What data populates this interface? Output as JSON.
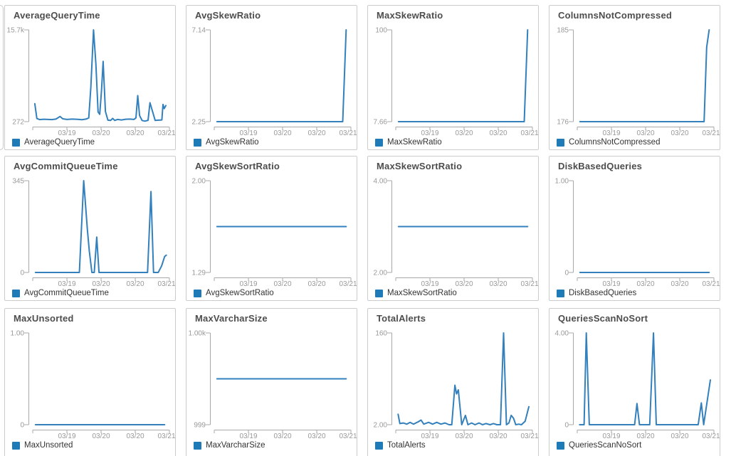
{
  "page": {
    "background": "#ffffff"
  },
  "colors": {
    "line": "#3380bc",
    "legend_swatch": "#1f7bb8",
    "axis": "#a8a8a8",
    "tick_text": "#999999",
    "title_text": "#4d4d4d",
    "legend_text": "#333333",
    "panel_border": "#cccccc"
  },
  "chart_data": [
    {
      "type": "line",
      "title": "AverageQueryTime",
      "legend": "AverageQueryTime",
      "ymin": 272,
      "ymax": 15700,
      "ymax_label": "15.7k",
      "ymin_label": "272",
      "x_tick_labels": [
        "03/19",
        "03/20",
        "03/20",
        "03/21"
      ],
      "grid": false,
      "legend_position": "bottom-left",
      "points": [
        [
          0.015,
          3300
        ],
        [
          0.03,
          800
        ],
        [
          0.05,
          620
        ],
        [
          0.08,
          680
        ],
        [
          0.11,
          640
        ],
        [
          0.14,
          620
        ],
        [
          0.17,
          700
        ],
        [
          0.2,
          1150
        ],
        [
          0.22,
          750
        ],
        [
          0.25,
          640
        ],
        [
          0.29,
          700
        ],
        [
          0.33,
          660
        ],
        [
          0.36,
          600
        ],
        [
          0.39,
          700
        ],
        [
          0.41,
          900
        ],
        [
          0.425,
          6000
        ],
        [
          0.445,
          15700
        ],
        [
          0.462,
          10000
        ],
        [
          0.478,
          1900
        ],
        [
          0.49,
          1500
        ],
        [
          0.503,
          5500
        ],
        [
          0.515,
          10400
        ],
        [
          0.532,
          2000
        ],
        [
          0.55,
          520
        ],
        [
          0.57,
          480
        ],
        [
          0.585,
          820
        ],
        [
          0.6,
          480
        ],
        [
          0.62,
          640
        ],
        [
          0.65,
          560
        ],
        [
          0.68,
          680
        ],
        [
          0.71,
          700
        ],
        [
          0.74,
          640
        ],
        [
          0.755,
          900
        ],
        [
          0.768,
          4650
        ],
        [
          0.782,
          1300
        ],
        [
          0.8,
          480
        ],
        [
          0.82,
          360
        ],
        [
          0.844,
          500
        ],
        [
          0.858,
          3450
        ],
        [
          0.896,
          470
        ],
        [
          0.92,
          520
        ],
        [
          0.945,
          560
        ],
        [
          0.953,
          3175
        ],
        [
          0.962,
          2460
        ],
        [
          0.974,
          2975
        ]
      ]
    },
    {
      "type": "line",
      "title": "AvgSkewRatio",
      "legend": "AvgSkewRatio",
      "ymin": 2.25,
      "ymax": 7.14,
      "ymax_label": "7.14",
      "ymin_label": "2.25",
      "x_tick_labels": [
        "03/19",
        "03/20",
        "03/20",
        "03/21"
      ],
      "grid": false,
      "legend_position": "bottom-left",
      "points": [
        [
          0.02,
          2.25
        ],
        [
          0.94,
          2.25
        ],
        [
          0.965,
          7.14
        ]
      ]
    },
    {
      "type": "line",
      "title": "MaxSkewRatio",
      "legend": "MaxSkewRatio",
      "ymin": 7.66,
      "ymax": 100,
      "ymax_label": "100",
      "ymin_label": "7.66",
      "x_tick_labels": [
        "03/19",
        "03/20",
        "03/20",
        "03/21"
      ],
      "grid": false,
      "legend_position": "bottom-left",
      "points": [
        [
          0.02,
          7.66
        ],
        [
          0.94,
          7.66
        ],
        [
          0.965,
          100
        ]
      ]
    },
    {
      "type": "line",
      "title": "ColumnsNotCompressed",
      "legend": "ColumnsNotCompressed",
      "ymin": 176,
      "ymax": 185,
      "ymax_label": "185",
      "ymin_label": "176",
      "x_tick_labels": [
        "03/19",
        "03/20",
        "03/20",
        "03/21"
      ],
      "grid": false,
      "legend_position": "bottom-left",
      "points": [
        [
          0.02,
          176
        ],
        [
          0.928,
          176
        ],
        [
          0.947,
          183.3
        ],
        [
          0.965,
          185
        ]
      ]
    },
    {
      "type": "line",
      "title": "AvgCommitQueueTime",
      "legend": "AvgCommitQueueTime",
      "ymin": 0,
      "ymax": 345,
      "ymax_label": "345",
      "ymin_label": "0",
      "x_tick_labels": [
        "03/19",
        "03/20",
        "03/20",
        "03/21"
      ],
      "grid": false,
      "legend_position": "bottom-left",
      "points": [
        [
          0.02,
          0
        ],
        [
          0.341,
          0
        ],
        [
          0.373,
          345
        ],
        [
          0.4,
          160
        ],
        [
          0.414,
          80
        ],
        [
          0.433,
          0
        ],
        [
          0.45,
          0
        ],
        [
          0.468,
          133
        ],
        [
          0.485,
          0
        ],
        [
          0.84,
          0
        ],
        [
          0.865,
          304
        ],
        [
          0.884,
          0
        ],
        [
          0.918,
          0
        ],
        [
          0.943,
          25
        ],
        [
          0.965,
          60
        ],
        [
          0.977,
          65
        ]
      ]
    },
    {
      "type": "line",
      "title": "AvgSkewSortRatio",
      "legend": "AvgSkewSortRatio",
      "ymin": 1.29,
      "ymax": 2.0,
      "ymax_label": "2.00",
      "ymin_label": "1.29",
      "x_tick_labels": [
        "03/19",
        "03/20",
        "03/20",
        "03/21"
      ],
      "grid": false,
      "legend_position": "bottom-left",
      "points": [
        [
          0.02,
          1.645
        ],
        [
          0.965,
          1.645
        ]
      ]
    },
    {
      "type": "line",
      "title": "MaxSkewSortRatio",
      "legend": "MaxSkewSortRatio",
      "ymin": 2.0,
      "ymax": 4.0,
      "ymax_label": "4.00",
      "ymin_label": "2.00",
      "x_tick_labels": [
        "03/19",
        "03/20",
        "03/20",
        "03/21"
      ],
      "grid": false,
      "legend_position": "bottom-left",
      "points": [
        [
          0.02,
          3.0
        ],
        [
          0.965,
          3.0
        ]
      ]
    },
    {
      "type": "line",
      "title": "DiskBasedQueries",
      "legend": "DiskBasedQueries",
      "ymin": 0,
      "ymax": 1.0,
      "ymax_label": "1.00",
      "ymin_label": "0",
      "x_tick_labels": [
        "03/19",
        "03/20",
        "03/20",
        "03/21"
      ],
      "grid": false,
      "legend_position": "bottom-left",
      "points": [
        [
          0.02,
          0
        ],
        [
          0.965,
          0
        ]
      ]
    },
    {
      "type": "line",
      "title": "MaxUnsorted",
      "legend": "MaxUnsorted",
      "ymin": 0,
      "ymax": 1.0,
      "ymax_label": "1.00",
      "ymin_label": "0",
      "x_tick_labels": [
        "03/19",
        "03/20",
        "03/20",
        "03/21"
      ],
      "grid": false,
      "legend_position": "bottom-left",
      "points": [
        [
          0.02,
          0
        ],
        [
          0.965,
          0
        ]
      ]
    },
    {
      "type": "line",
      "title": "MaxVarcharSize",
      "legend": "MaxVarcharSize",
      "ymin": 999,
      "ymax": 1000,
      "ymax_label": "1.00k",
      "ymin_label": "999",
      "x_tick_labels": [
        "03/19",
        "03/20",
        "03/20",
        "03/21"
      ],
      "grid": false,
      "legend_position": "bottom-left",
      "points": [
        [
          0.02,
          999.5
        ],
        [
          0.965,
          999.5
        ]
      ]
    },
    {
      "type": "line",
      "title": "TotalAlerts",
      "legend": "TotalAlerts",
      "ymin": 2.0,
      "ymax": 160,
      "ymax_label": "160",
      "ymin_label": "2.00",
      "x_tick_labels": [
        "03/19",
        "03/20",
        "03/20",
        "03/21"
      ],
      "grid": false,
      "legend_position": "bottom-left",
      "points": [
        [
          0.017,
          20
        ],
        [
          0.03,
          4
        ],
        [
          0.055,
          5
        ],
        [
          0.08,
          3
        ],
        [
          0.105,
          6
        ],
        [
          0.13,
          3
        ],
        [
          0.165,
          7
        ],
        [
          0.185,
          10
        ],
        [
          0.205,
          3
        ],
        [
          0.24,
          6
        ],
        [
          0.27,
          3
        ],
        [
          0.3,
          6
        ],
        [
          0.33,
          3
        ],
        [
          0.36,
          5
        ],
        [
          0.39,
          2
        ],
        [
          0.41,
          2
        ],
        [
          0.433,
          70
        ],
        [
          0.445,
          55
        ],
        [
          0.458,
          62
        ],
        [
          0.483,
          2
        ],
        [
          0.51,
          18
        ],
        [
          0.528,
          2
        ],
        [
          0.555,
          5
        ],
        [
          0.58,
          2
        ],
        [
          0.61,
          5
        ],
        [
          0.635,
          2
        ],
        [
          0.66,
          4
        ],
        [
          0.69,
          2
        ],
        [
          0.715,
          4
        ],
        [
          0.74,
          2
        ],
        [
          0.766,
          2
        ],
        [
          0.789,
          160
        ],
        [
          0.81,
          2
        ],
        [
          0.828,
          5
        ],
        [
          0.845,
          18
        ],
        [
          0.862,
          13
        ],
        [
          0.878,
          2
        ],
        [
          0.9,
          3
        ],
        [
          0.92,
          2
        ],
        [
          0.947,
          8
        ],
        [
          0.974,
          33
        ]
      ]
    },
    {
      "type": "line",
      "title": "QueriesScanNoSort",
      "legend": "QueriesScanNoSort",
      "ymin": 0,
      "ymax": 4.0,
      "ymax_label": "4.00",
      "ymin_label": "0",
      "x_tick_labels": [
        "03/19",
        "03/20",
        "03/20",
        "03/21"
      ],
      "grid": false,
      "legend_position": "bottom-left",
      "points": [
        [
          0.017,
          0
        ],
        [
          0.05,
          0
        ],
        [
          0.066,
          4
        ],
        [
          0.088,
          0
        ],
        [
          0.42,
          0
        ],
        [
          0.437,
          0.92
        ],
        [
          0.455,
          0
        ],
        [
          0.53,
          0
        ],
        [
          0.558,
          4
        ],
        [
          0.578,
          0
        ],
        [
          0.885,
          0
        ],
        [
          0.908,
          0.95
        ],
        [
          0.925,
          0
        ],
        [
          0.974,
          1.95
        ]
      ]
    }
  ]
}
